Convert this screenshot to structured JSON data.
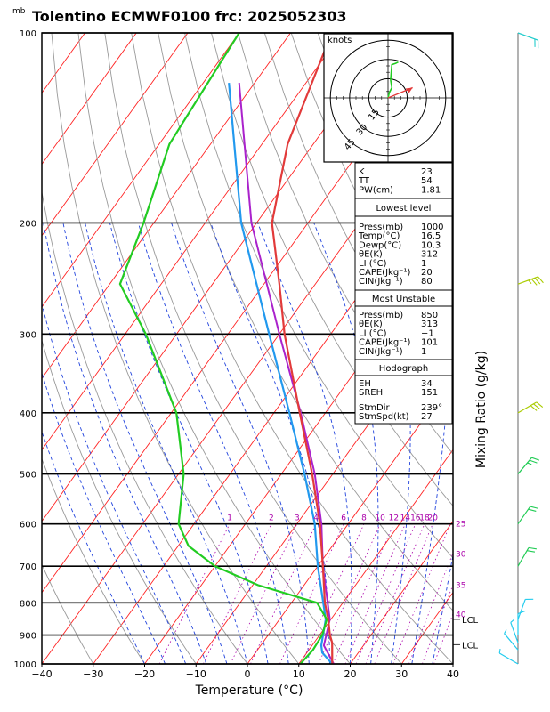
{
  "title": "Tolentino ECMWF0100 frc: 2025052303",
  "unit_top": "mb",
  "xlabel": "Temperature (°C)",
  "ylabel_right": "Mixing Ratio (g/kg)",
  "hodo_units": "knots",
  "colors": {
    "temperature": "#e23a3a",
    "dewpoint": "#22cc22",
    "parcel": "#2299ee",
    "virtual": "#aa22cc",
    "isotherm": "#ff2222",
    "dry_adiabat": "#999999",
    "moist_adiabat": "#2244dd",
    "mixing_ratio": "#aa00aa"
  },
  "chart_data": {
    "type": "line",
    "title": "Tolentino ECMWF0100 frc: 2025052303",
    "xlabel": "Temperature (°C)",
    "ylabel": "mb",
    "xlim": [
      -40,
      40
    ],
    "ylim": [
      1000,
      100
    ],
    "x_ticks": [
      "−40",
      "−30",
      "−20",
      "−10",
      "0",
      "10",
      "20",
      "30",
      "40"
    ],
    "y_ticks": [
      "100",
      "200",
      "300",
      "400",
      "500",
      "600",
      "700",
      "800",
      "900",
      "1000"
    ],
    "series": [
      {
        "name": "Temperature",
        "points": [
          [
            1000,
            16.5
          ],
          [
            925,
            13.5
          ],
          [
            900,
            12
          ],
          [
            850,
            9.5
          ],
          [
            800,
            6.5
          ],
          [
            700,
            1
          ],
          [
            600,
            -5.5
          ],
          [
            500,
            -14
          ],
          [
            400,
            -25
          ],
          [
            300,
            -39
          ],
          [
            250,
            -47
          ],
          [
            200,
            -57
          ],
          [
            150,
            -65
          ],
          [
            100,
            -72
          ]
        ]
      },
      {
        "name": "Dewpoint",
        "points": [
          [
            1000,
            10.3
          ],
          [
            950,
            10.8
          ],
          [
            900,
            10.5
          ],
          [
            850,
            9.2
          ],
          [
            800,
            5
          ],
          [
            750,
            -9
          ],
          [
            700,
            -20
          ],
          [
            650,
            -28
          ],
          [
            600,
            -33
          ],
          [
            500,
            -39
          ],
          [
            400,
            -49
          ],
          [
            300,
            -66
          ],
          [
            250,
            -78
          ],
          [
            200,
            -82
          ],
          [
            150,
            -88
          ],
          [
            100,
            -90
          ]
        ]
      },
      {
        "name": "Parcel",
        "points": [
          [
            1000,
            16.5
          ],
          [
            960,
            13
          ],
          [
            935,
            11.8
          ],
          [
            850,
            9
          ],
          [
            700,
            0
          ],
          [
            600,
            -6.5
          ],
          [
            500,
            -15.5
          ],
          [
            400,
            -27
          ],
          [
            300,
            -42
          ],
          [
            200,
            -63
          ],
          [
            120,
            -85
          ]
        ]
      },
      {
        "name": "Virtual temperature",
        "points": [
          [
            1000,
            16.8
          ],
          [
            935,
            12.3
          ],
          [
            850,
            9.8
          ],
          [
            700,
            1
          ],
          [
            600,
            -5.2
          ],
          [
            500,
            -13.5
          ],
          [
            400,
            -24.8
          ],
          [
            300,
            -40
          ],
          [
            200,
            -61
          ],
          [
            120,
            -83
          ]
        ]
      }
    ],
    "mixing_ratio_labels": [
      "1",
      "2",
      "3",
      "4",
      "6",
      "8",
      "10",
      "12",
      "14",
      "16",
      "18",
      "20",
      "25",
      "30",
      "35",
      "40"
    ],
    "lcl_labels": [
      "LCL",
      "LCL"
    ],
    "hodograph": {
      "units": "knots",
      "rings": [
        "15",
        "30",
        "45"
      ],
      "points": [
        [
          0,
          0
        ],
        [
          1,
          4
        ],
        [
          3,
          8
        ],
        [
          2,
          14
        ],
        [
          3,
          26
        ],
        [
          6,
          27
        ],
        [
          8,
          28
        ]
      ],
      "storm_motion": [
        [
          0,
          0
        ],
        [
          12,
          10
        ]
      ]
    },
    "wind_barbs": [
      {
        "p": 100,
        "dir": 290,
        "kt": 20
      },
      {
        "p": 250,
        "dir": 250,
        "kt": 35
      },
      {
        "p": 400,
        "dir": 240,
        "kt": 30
      },
      {
        "p": 500,
        "dir": 220,
        "kt": 25
      },
      {
        "p": 600,
        "dir": 215,
        "kt": 20
      },
      {
        "p": 700,
        "dir": 210,
        "kt": 20
      },
      {
        "p": 850,
        "dir": 200,
        "kt": 10
      },
      {
        "p": 900,
        "dir": 180,
        "kt": 10
      },
      {
        "p": 925,
        "dir": 160,
        "kt": 8
      },
      {
        "p": 950,
        "dir": 140,
        "kt": 6
      },
      {
        "p": 1000,
        "dir": 120,
        "kt": 5
      }
    ],
    "indices": {
      "top": [
        [
          "K",
          "23"
        ],
        [
          "TT",
          "54"
        ],
        [
          "PW(cm)",
          "1.81"
        ]
      ],
      "lowest_title": "Lowest level",
      "lowest": [
        [
          "Press(mb)",
          "1000"
        ],
        [
          "Temp(°C)",
          "16.5"
        ],
        [
          "Dewp(°C)",
          "10.3"
        ],
        [
          "θE(K)",
          "312"
        ],
        [
          "LI (°C)",
          "1"
        ],
        [
          "CAPE(Jkg⁻¹)",
          "20"
        ],
        [
          "CIN(Jkg⁻¹)",
          "80"
        ]
      ],
      "mu_title": "Most Unstable",
      "mu": [
        [
          "Press(mb)",
          "850"
        ],
        [
          "θE(K)",
          "313"
        ],
        [
          "LI (°C)",
          "−1"
        ],
        [
          "CAPE(Jkg⁻¹)",
          "101"
        ],
        [
          "CIN(Jkg⁻¹)",
          "1"
        ]
      ],
      "hodo_title": "Hodograph",
      "hodo": [
        [
          "EH",
          "34"
        ],
        [
          "SREH",
          "151"
        ],
        [
          "StmDir",
          "239°"
        ],
        [
          "StmSpd(kt)",
          "27"
        ]
      ]
    }
  }
}
